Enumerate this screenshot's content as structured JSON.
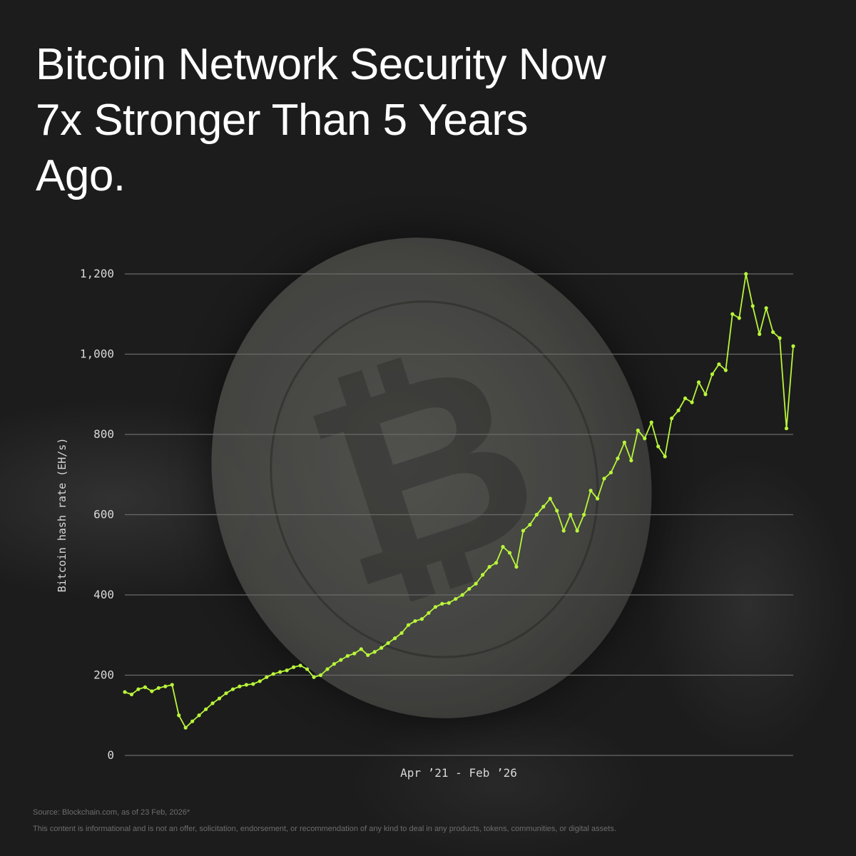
{
  "title": "Bitcoin Network Security Now 7x Stronger Than 5 Years Ago.",
  "footer": {
    "source": "Source: Blockchain.com, as of 23 Feb, 2026*",
    "disclaimer": "This content is informational and is not an offer, solicitation, endorsement, or recommendation of any kind to deal in any products, tokens, communities, or digital assets."
  },
  "chart_data": {
    "type": "line",
    "xlabel": "Apr ’21 - Feb ’26",
    "ylabel": "Bitcoin hash rate (EH/s)",
    "ylim": [
      0,
      1200
    ],
    "yticks": [
      "0",
      "200",
      "400",
      "600",
      "800",
      "1,000",
      "1,200"
    ],
    "grid": true,
    "line_color": "#b8f53a",
    "values": [
      158,
      152,
      165,
      170,
      160,
      168,
      172,
      176,
      100,
      69,
      85,
      100,
      115,
      130,
      142,
      155,
      165,
      172,
      176,
      178,
      185,
      195,
      203,
      208,
      212,
      220,
      224,
      215,
      195,
      200,
      215,
      228,
      238,
      248,
      254,
      265,
      250,
      258,
      268,
      280,
      292,
      305,
      325,
      335,
      340,
      355,
      370,
      378,
      380,
      390,
      400,
      415,
      428,
      450,
      470,
      480,
      520,
      505,
      470,
      560,
      575,
      600,
      620,
      640,
      610,
      560,
      600,
      560,
      600,
      660,
      640,
      690,
      705,
      740,
      780,
      735,
      810,
      790,
      830,
      770,
      745,
      840,
      860,
      890,
      880,
      930,
      900,
      950,
      975,
      960,
      1100,
      1090,
      1200,
      1120,
      1050,
      1115,
      1055,
      1040,
      815,
      1020
    ]
  }
}
